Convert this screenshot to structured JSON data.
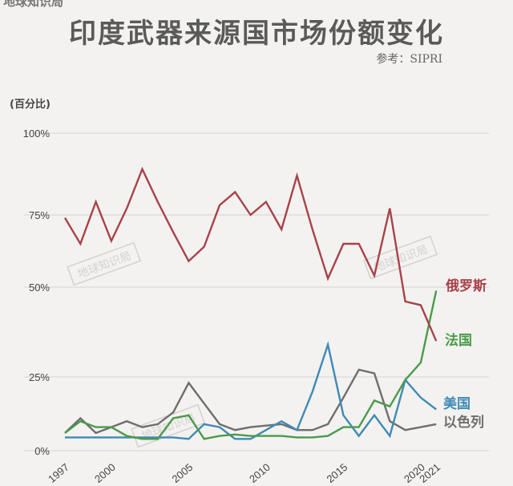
{
  "brand": "地球知识局",
  "title": "印度武器来源国市场份额变化",
  "source": "参考：SIPRI",
  "unit_label": "(百分比)",
  "watermark": "地球知识局",
  "chart_data": {
    "type": "line",
    "title": "印度武器来源国市场份额变化",
    "ylabel": "(百分比)",
    "xlabel": "",
    "ylim": [
      0,
      100
    ],
    "y_ticks": [
      0,
      25,
      50,
      75,
      100
    ],
    "y_tick_labels": [
      "0%",
      "25%",
      "50%",
      "75%",
      "100%"
    ],
    "x_tick_values": [
      1997,
      2000,
      2005,
      2010,
      2015,
      2020,
      2021
    ],
    "x_tick_labels": [
      "1997",
      "2000",
      "2005",
      "2010",
      "2015",
      "2020",
      "2021"
    ],
    "grid": true,
    "legend": "inline-right",
    "x": [
      1997,
      1998,
      1999,
      2000,
      2001,
      2002,
      2003,
      2004,
      2005,
      2006,
      2007,
      2008,
      2009,
      2010,
      2011,
      2012,
      2013,
      2014,
      2015,
      2016,
      2017,
      2018,
      2019,
      2020,
      2021
    ],
    "series": [
      {
        "name": "俄罗斯",
        "color": "#a8424a",
        "values": [
          74,
          65,
          79,
          66,
          77,
          89,
          79,
          69,
          59,
          64,
          78,
          82,
          75,
          79,
          70,
          87,
          70,
          53,
          65,
          65,
          54,
          77,
          46,
          45,
          35
        ]
      },
      {
        "name": "法国",
        "color": "#4b9a4b",
        "values": [
          6,
          10,
          8,
          8,
          5,
          4,
          4,
          11,
          12,
          4,
          5,
          5.5,
          5,
          5,
          5,
          4.5,
          4.5,
          5,
          8,
          8,
          17,
          15,
          24,
          29,
          49
        ]
      },
      {
        "name": "美国",
        "color": "#3f8ab6",
        "values": [
          4.5,
          4.5,
          4.5,
          4.5,
          4.5,
          4.5,
          4.5,
          4.5,
          4,
          9,
          8,
          4,
          4,
          7,
          10,
          7,
          20,
          34,
          12,
          5,
          12,
          5,
          24,
          18,
          14
        ]
      },
      {
        "name": "以色列",
        "color": "#6e6e6e",
        "values": [
          6,
          11,
          6,
          8,
          10,
          8,
          9,
          13,
          23,
          16,
          9,
          7,
          8,
          8.5,
          9,
          7,
          7,
          9,
          18,
          27,
          26,
          10,
          7,
          8,
          9
        ]
      }
    ]
  }
}
